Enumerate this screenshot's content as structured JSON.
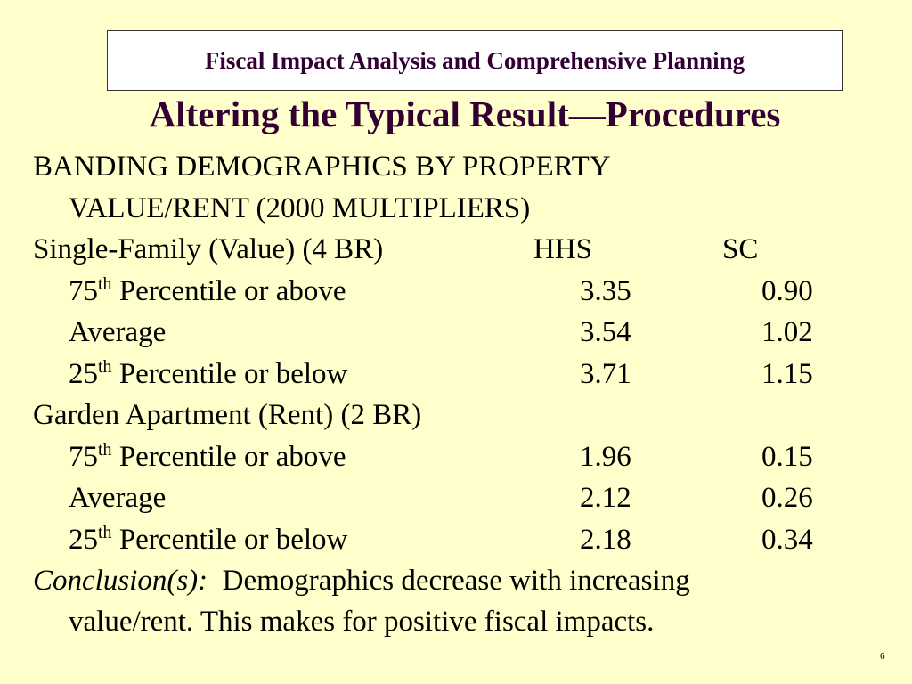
{
  "header": {
    "text": "Fiscal Impact Analysis and Comprehensive Planning"
  },
  "title": "Altering the Typical Result—Procedures",
  "intro": {
    "line1": "BANDING DEMOGRAPHICS BY PROPERTY",
    "line2": "VALUE/RENT (2000 MULTIPLIERS)"
  },
  "single_family": {
    "label": "Single-Family (Value) (4 BR)",
    "col_hhs": "HHS",
    "col_sc": "SC",
    "rows": [
      {
        "num": "75",
        "sup": "th",
        "label": " Percentile or above",
        "hhs": "3.35",
        "sc": "0.90"
      },
      {
        "num": "",
        "sup": "",
        "label": "Average",
        "hhs": "3.54",
        "sc": "1.02"
      },
      {
        "num": "25",
        "sup": "th",
        "label": " Percentile or below",
        "hhs": "3.71",
        "sc": "1.15"
      }
    ]
  },
  "garden_apartment": {
    "label": "Garden Apartment (Rent) (2 BR)",
    "rows": [
      {
        "num": "75",
        "sup": "th",
        "label": " Percentile or above",
        "hhs": "1.96",
        "sc": "0.15"
      },
      {
        "num": "",
        "sup": "",
        "label": "Average",
        "hhs": "2.12",
        "sc": "0.26"
      },
      {
        "num": "25",
        "sup": "th",
        "label": " Percentile or below",
        "hhs": "2.18",
        "sc": "0.34"
      }
    ]
  },
  "conclusion": {
    "label": "Conclusion(s):",
    "text1": "Demographics decrease with increasing",
    "text2": "value/rent. This makes for positive fiscal impacts."
  },
  "page_number": "6"
}
